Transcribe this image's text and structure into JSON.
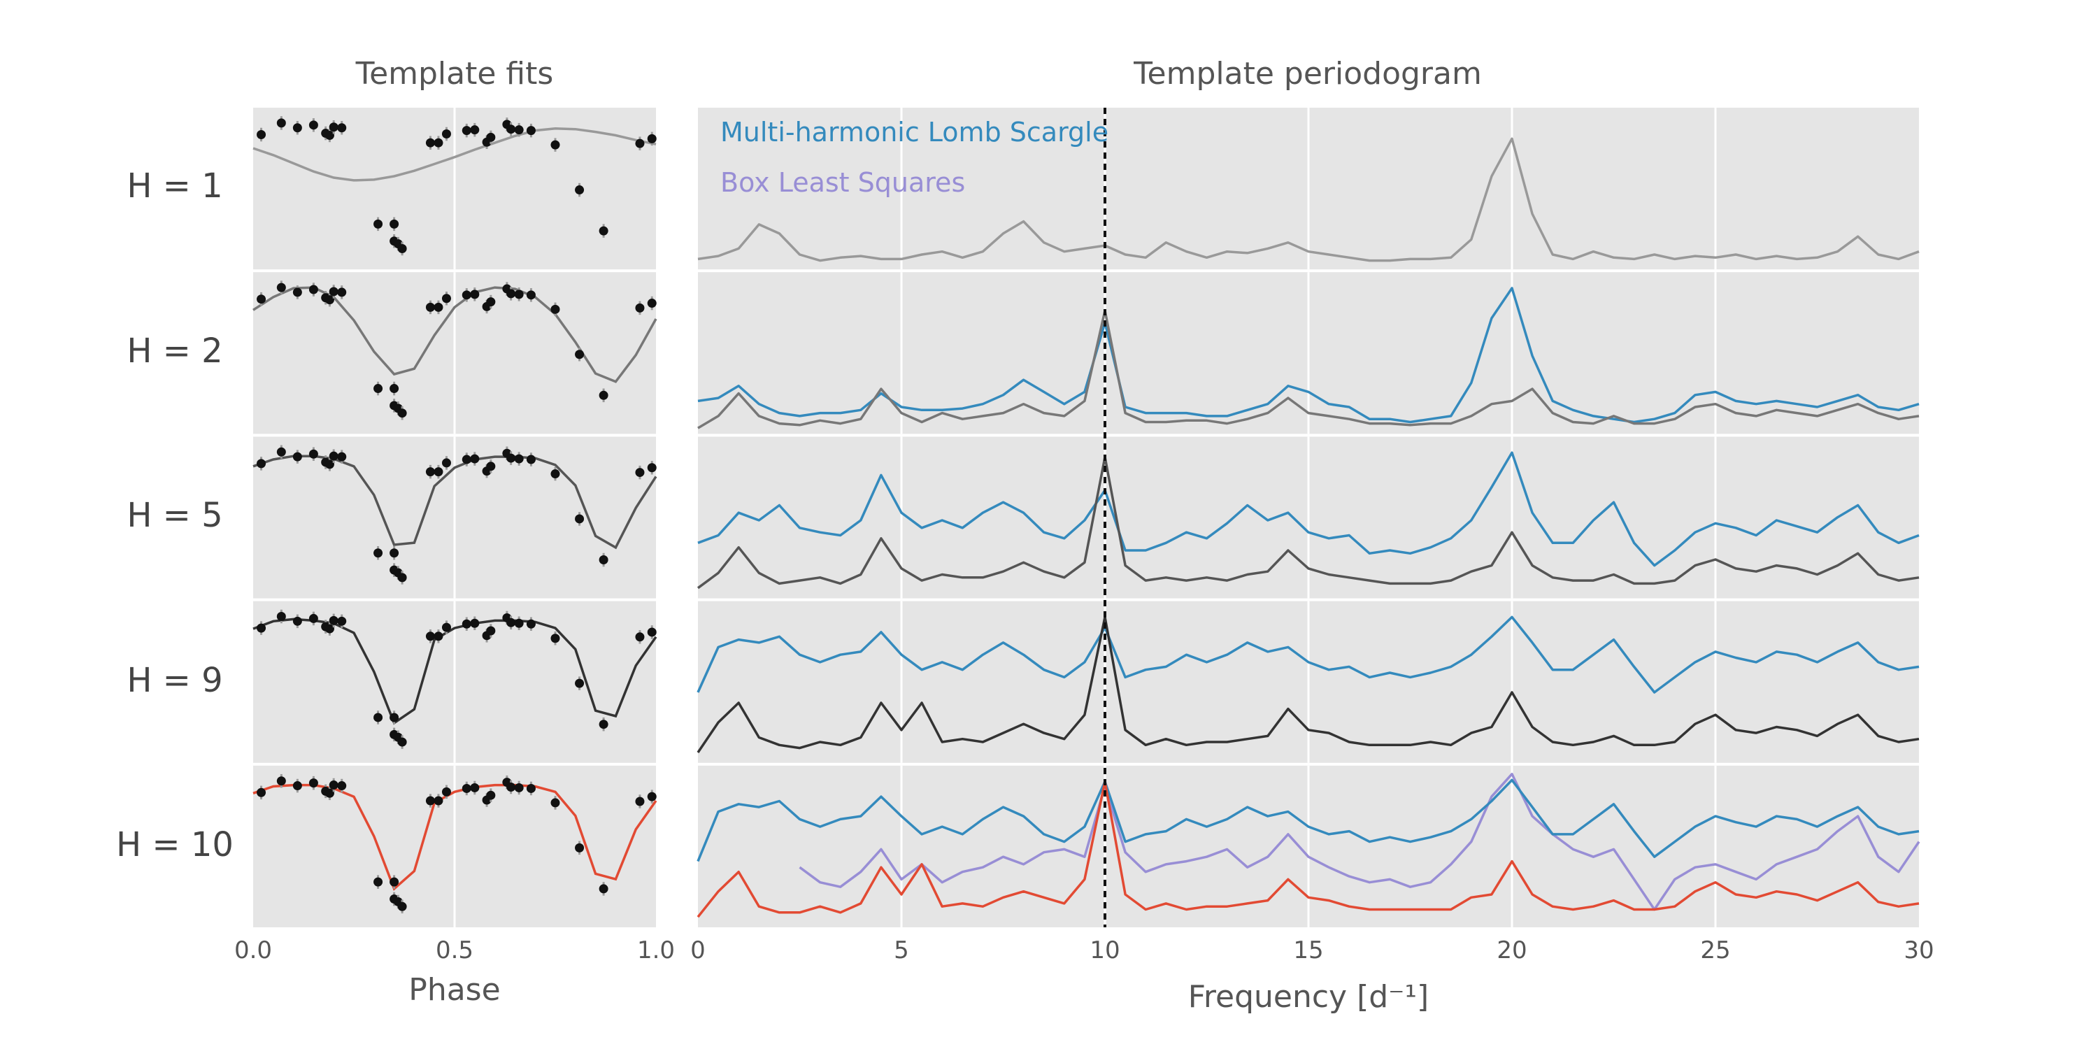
{
  "fits_panel": {
    "title": "Template fits",
    "xlabel": "Phase",
    "xlim": [
      0.0,
      1.0
    ],
    "xticks": [
      "0.0",
      "0.5",
      "1.0"
    ]
  },
  "periodogram_panel": {
    "title": "Template periodogram",
    "xlabel": "Frequency [d⁻¹]",
    "xlim": [
      0,
      30
    ],
    "xticks": [
      "0",
      "5",
      "10",
      "15",
      "20",
      "25",
      "30"
    ],
    "marker_frequency": 10,
    "legend": [
      {
        "key": "mhls",
        "label": "Multi-harmonic Lomb Scargle",
        "color": "#348abd"
      },
      {
        "key": "bls",
        "label": "Box Least Squares",
        "color": "#988ed5"
      }
    ]
  },
  "rows": [
    {
      "label": "H = 1"
    },
    {
      "label": "H = 2"
    },
    {
      "label": "H = 5"
    },
    {
      "label": "H = 9"
    },
    {
      "label": "H = 10"
    }
  ],
  "chart_data": [
    {
      "type": "scatter",
      "title": "Template fits",
      "xlabel": "Phase",
      "ylabel": "",
      "xlim": [
        0.0,
        1.0
      ],
      "observations": {
        "x": [
          0.02,
          0.07,
          0.11,
          0.15,
          0.18,
          0.19,
          0.2,
          0.22,
          0.31,
          0.35,
          0.35,
          0.36,
          0.37,
          0.44,
          0.46,
          0.48,
          0.53,
          0.55,
          0.58,
          0.59,
          0.63,
          0.64,
          0.66,
          0.69,
          0.75,
          0.81,
          0.87,
          0.96,
          0.99
        ],
        "y": [
          0.79,
          0.96,
          0.89,
          0.93,
          0.81,
          0.78,
          0.9,
          0.89,
          -0.52,
          -0.52,
          -0.77,
          -0.81,
          -0.88,
          0.67,
          0.67,
          0.8,
          0.85,
          0.86,
          0.68,
          0.75,
          0.94,
          0.87,
          0.86,
          0.85,
          0.64,
          -0.02,
          -0.62,
          0.66,
          0.73
        ],
        "error": 0.1
      },
      "series": [
        {
          "name": "H = 1",
          "color": "#999999",
          "x": [
            0.0,
            0.05,
            0.1,
            0.15,
            0.2,
            0.25,
            0.3,
            0.35,
            0.4,
            0.45,
            0.5,
            0.55,
            0.6,
            0.65,
            0.7,
            0.75,
            0.8,
            0.85,
            0.9,
            0.95,
            1.0
          ],
          "y": [
            0.59,
            0.49,
            0.37,
            0.25,
            0.16,
            0.12,
            0.13,
            0.18,
            0.26,
            0.36,
            0.46,
            0.57,
            0.67,
            0.77,
            0.85,
            0.88,
            0.87,
            0.83,
            0.78,
            0.71,
            0.65
          ]
        },
        {
          "name": "H = 2",
          "color": "#777777",
          "x": [
            0.0,
            0.05,
            0.1,
            0.15,
            0.2,
            0.25,
            0.3,
            0.35,
            0.4,
            0.45,
            0.5,
            0.55,
            0.6,
            0.65,
            0.7,
            0.75,
            0.8,
            0.85,
            0.9,
            0.95,
            1.0
          ],
          "y": [
            0.63,
            0.82,
            0.95,
            0.96,
            0.82,
            0.48,
            0.02,
            -0.31,
            -0.23,
            0.26,
            0.67,
            0.89,
            0.96,
            0.94,
            0.82,
            0.57,
            0.16,
            -0.3,
            -0.42,
            -0.03,
            0.5
          ]
        },
        {
          "name": "H = 5",
          "color": "#555555",
          "x": [
            0.0,
            0.05,
            0.1,
            0.15,
            0.2,
            0.25,
            0.3,
            0.35,
            0.4,
            0.45,
            0.5,
            0.55,
            0.6,
            0.65,
            0.7,
            0.75,
            0.8,
            0.85,
            0.9,
            0.95,
            1.0
          ],
          "y": [
            0.75,
            0.85,
            0.9,
            0.9,
            0.86,
            0.75,
            0.33,
            -0.4,
            -0.37,
            0.46,
            0.73,
            0.85,
            0.89,
            0.89,
            0.87,
            0.77,
            0.47,
            -0.27,
            -0.44,
            0.14,
            0.6
          ]
        },
        {
          "name": "H = 9",
          "color": "#333333",
          "x": [
            0.0,
            0.05,
            0.1,
            0.15,
            0.2,
            0.25,
            0.3,
            0.35,
            0.4,
            0.45,
            0.5,
            0.55,
            0.6,
            0.65,
            0.7,
            0.75,
            0.8,
            0.85,
            0.9,
            0.95,
            1.0
          ],
          "y": [
            0.78,
            0.89,
            0.92,
            0.9,
            0.86,
            0.72,
            0.15,
            -0.6,
            -0.4,
            0.62,
            0.79,
            0.86,
            0.9,
            0.9,
            0.88,
            0.79,
            0.48,
            -0.42,
            -0.5,
            0.24,
            0.66
          ]
        },
        {
          "name": "H = 10",
          "color": "#e24a33",
          "x": [
            0.0,
            0.05,
            0.1,
            0.15,
            0.2,
            0.25,
            0.3,
            0.35,
            0.4,
            0.45,
            0.5,
            0.55,
            0.6,
            0.65,
            0.7,
            0.75,
            0.8,
            0.85,
            0.9,
            0.95,
            1.0
          ],
          "y": [
            0.78,
            0.88,
            0.9,
            0.9,
            0.85,
            0.73,
            0.15,
            -0.62,
            -0.36,
            0.64,
            0.8,
            0.87,
            0.9,
            0.9,
            0.88,
            0.8,
            0.45,
            -0.4,
            -0.48,
            0.25,
            0.67
          ]
        }
      ]
    },
    {
      "type": "line",
      "title": "Template periodogram",
      "xlabel": "Frequency [d⁻¹]",
      "ylabel": "",
      "xlim": [
        0,
        30
      ],
      "x": [
        0.0,
        0.5,
        1.0,
        1.5,
        2.0,
        2.5,
        3.0,
        3.5,
        4.0,
        4.5,
        5.0,
        5.5,
        6.0,
        6.5,
        7.0,
        7.5,
        8.0,
        8.5,
        9.0,
        9.5,
        10.0,
        10.5,
        11.0,
        11.5,
        12.0,
        12.5,
        13.0,
        13.5,
        14.0,
        14.5,
        15.0,
        15.5,
        16.0,
        16.5,
        17.0,
        17.5,
        18.0,
        18.5,
        19.0,
        19.5,
        20.0,
        20.5,
        21.0,
        21.5,
        22.0,
        22.5,
        23.0,
        23.5,
        24.0,
        24.5,
        25.0,
        25.5,
        26.0,
        26.5,
        27.0,
        27.5,
        28.0,
        28.5,
        29.0,
        29.5,
        30.0
      ],
      "series": [
        {
          "name": "H = 1",
          "method": "template",
          "color": "#999999",
          "y": [
            0.05,
            0.07,
            0.12,
            0.28,
            0.22,
            0.08,
            0.04,
            0.06,
            0.07,
            0.05,
            0.05,
            0.08,
            0.1,
            0.06,
            0.1,
            0.22,
            0.3,
            0.16,
            0.1,
            0.12,
            0.14,
            0.08,
            0.06,
            0.16,
            0.1,
            0.06,
            0.1,
            0.09,
            0.12,
            0.16,
            0.1,
            0.08,
            0.06,
            0.04,
            0.04,
            0.05,
            0.05,
            0.06,
            0.18,
            0.6,
            0.85,
            0.35,
            0.08,
            0.05,
            0.1,
            0.06,
            0.05,
            0.08,
            0.05,
            0.07,
            0.06,
            0.08,
            0.05,
            0.07,
            0.05,
            0.06,
            0.1,
            0.2,
            0.08,
            0.05,
            0.1
          ]
        },
        {
          "name": "H = 2",
          "method": "template",
          "color": "#777777",
          "y": [
            0.02,
            0.1,
            0.25,
            0.1,
            0.05,
            0.04,
            0.07,
            0.05,
            0.08,
            0.28,
            0.12,
            0.06,
            0.12,
            0.08,
            0.1,
            0.12,
            0.18,
            0.12,
            0.1,
            0.2,
            0.8,
            0.12,
            0.06,
            0.06,
            0.07,
            0.07,
            0.05,
            0.08,
            0.12,
            0.22,
            0.12,
            0.1,
            0.08,
            0.05,
            0.05,
            0.04,
            0.05,
            0.05,
            0.1,
            0.18,
            0.2,
            0.28,
            0.12,
            0.06,
            0.05,
            0.1,
            0.05,
            0.05,
            0.08,
            0.16,
            0.18,
            0.12,
            0.1,
            0.14,
            0.12,
            0.1,
            0.14,
            0.18,
            0.12,
            0.08,
            0.1
          ]
        },
        {
          "name": "H = 2",
          "method": "Multi-harmonic Lomb Scargle",
          "color": "#348abd",
          "y": [
            0.2,
            0.22,
            0.3,
            0.18,
            0.12,
            0.1,
            0.12,
            0.12,
            0.14,
            0.25,
            0.16,
            0.14,
            0.14,
            0.15,
            0.18,
            0.24,
            0.34,
            0.26,
            0.18,
            0.26,
            0.72,
            0.16,
            0.12,
            0.12,
            0.12,
            0.1,
            0.1,
            0.14,
            0.18,
            0.3,
            0.26,
            0.18,
            0.16,
            0.08,
            0.08,
            0.06,
            0.08,
            0.1,
            0.32,
            0.75,
            0.95,
            0.5,
            0.2,
            0.14,
            0.1,
            0.08,
            0.06,
            0.08,
            0.12,
            0.24,
            0.26,
            0.2,
            0.18,
            0.2,
            0.18,
            0.16,
            0.2,
            0.24,
            0.16,
            0.14,
            0.18
          ]
        },
        {
          "name": "H = 5",
          "method": "template",
          "color": "#555555",
          "y": [
            0.05,
            0.15,
            0.32,
            0.15,
            0.08,
            0.1,
            0.12,
            0.08,
            0.14,
            0.38,
            0.18,
            0.1,
            0.14,
            0.12,
            0.12,
            0.16,
            0.22,
            0.16,
            0.12,
            0.22,
            0.92,
            0.2,
            0.1,
            0.12,
            0.1,
            0.12,
            0.1,
            0.14,
            0.16,
            0.3,
            0.18,
            0.14,
            0.12,
            0.1,
            0.08,
            0.08,
            0.08,
            0.1,
            0.16,
            0.2,
            0.42,
            0.2,
            0.12,
            0.1,
            0.1,
            0.14,
            0.08,
            0.08,
            0.1,
            0.2,
            0.24,
            0.18,
            0.16,
            0.2,
            0.18,
            0.14,
            0.2,
            0.28,
            0.14,
            0.1,
            0.12
          ]
        },
        {
          "name": "H = 5",
          "method": "Multi-harmonic Lomb Scargle",
          "color": "#348abd",
          "y": [
            0.35,
            0.4,
            0.55,
            0.5,
            0.6,
            0.45,
            0.42,
            0.4,
            0.5,
            0.8,
            0.55,
            0.45,
            0.5,
            0.45,
            0.55,
            0.62,
            0.55,
            0.42,
            0.38,
            0.5,
            0.7,
            0.3,
            0.3,
            0.35,
            0.42,
            0.38,
            0.48,
            0.6,
            0.5,
            0.55,
            0.42,
            0.38,
            0.4,
            0.28,
            0.3,
            0.28,
            0.32,
            0.38,
            0.5,
            0.72,
            0.95,
            0.55,
            0.35,
            0.35,
            0.5,
            0.62,
            0.35,
            0.2,
            0.3,
            0.42,
            0.48,
            0.45,
            0.4,
            0.5,
            0.46,
            0.42,
            0.52,
            0.6,
            0.42,
            0.35,
            0.4
          ]
        },
        {
          "name": "H = 9",
          "method": "template",
          "color": "#333333",
          "y": [
            0.05,
            0.25,
            0.38,
            0.15,
            0.1,
            0.08,
            0.12,
            0.1,
            0.15,
            0.38,
            0.2,
            0.38,
            0.12,
            0.14,
            0.12,
            0.18,
            0.24,
            0.18,
            0.14,
            0.3,
            0.95,
            0.2,
            0.1,
            0.14,
            0.1,
            0.12,
            0.12,
            0.14,
            0.16,
            0.34,
            0.2,
            0.18,
            0.12,
            0.1,
            0.1,
            0.1,
            0.12,
            0.1,
            0.18,
            0.22,
            0.45,
            0.22,
            0.12,
            0.1,
            0.12,
            0.16,
            0.1,
            0.1,
            0.12,
            0.24,
            0.3,
            0.2,
            0.18,
            0.22,
            0.2,
            0.16,
            0.24,
            0.3,
            0.16,
            0.12,
            0.14
          ]
        },
        {
          "name": "H = 9",
          "method": "Multi-harmonic Lomb Scargle",
          "color": "#348abd",
          "y": [
            0.45,
            0.75,
            0.8,
            0.78,
            0.82,
            0.7,
            0.65,
            0.7,
            0.72,
            0.85,
            0.7,
            0.6,
            0.65,
            0.6,
            0.7,
            0.78,
            0.7,
            0.6,
            0.55,
            0.65,
            0.88,
            0.55,
            0.6,
            0.62,
            0.7,
            0.65,
            0.7,
            0.78,
            0.72,
            0.75,
            0.65,
            0.6,
            0.62,
            0.55,
            0.58,
            0.55,
            0.58,
            0.62,
            0.7,
            0.82,
            0.95,
            0.78,
            0.6,
            0.6,
            0.7,
            0.8,
            0.62,
            0.45,
            0.55,
            0.65,
            0.72,
            0.68,
            0.65,
            0.72,
            0.7,
            0.65,
            0.72,
            0.78,
            0.65,
            0.6,
            0.62
          ]
        },
        {
          "name": "H = 10",
          "method": "template",
          "color": "#e24a33",
          "y": [
            0.05,
            0.22,
            0.35,
            0.12,
            0.08,
            0.08,
            0.12,
            0.08,
            0.14,
            0.38,
            0.2,
            0.4,
            0.12,
            0.14,
            0.12,
            0.18,
            0.22,
            0.18,
            0.14,
            0.3,
            0.95,
            0.2,
            0.1,
            0.14,
            0.1,
            0.12,
            0.12,
            0.14,
            0.16,
            0.3,
            0.18,
            0.16,
            0.12,
            0.1,
            0.1,
            0.1,
            0.1,
            0.1,
            0.18,
            0.2,
            0.42,
            0.2,
            0.12,
            0.1,
            0.12,
            0.16,
            0.1,
            0.1,
            0.12,
            0.22,
            0.28,
            0.2,
            0.18,
            0.22,
            0.2,
            0.16,
            0.22,
            0.28,
            0.15,
            0.12,
            0.14
          ]
        },
        {
          "name": "H = 10",
          "method": "Multi-harmonic Lomb Scargle",
          "color": "#348abd",
          "y": [
            0.42,
            0.75,
            0.8,
            0.78,
            0.82,
            0.7,
            0.65,
            0.7,
            0.72,
            0.85,
            0.72,
            0.6,
            0.65,
            0.6,
            0.7,
            0.78,
            0.72,
            0.6,
            0.55,
            0.65,
            0.95,
            0.55,
            0.6,
            0.62,
            0.7,
            0.65,
            0.7,
            0.78,
            0.72,
            0.75,
            0.65,
            0.6,
            0.62,
            0.55,
            0.58,
            0.55,
            0.58,
            0.62,
            0.7,
            0.82,
            0.96,
            0.78,
            0.6,
            0.6,
            0.7,
            0.8,
            0.62,
            0.45,
            0.55,
            0.65,
            0.72,
            0.68,
            0.65,
            0.72,
            0.7,
            0.65,
            0.72,
            0.78,
            0.65,
            0.6,
            0.62
          ]
        },
        {
          "name": "H = 10",
          "method": "Box Least Squares",
          "color": "#988ed5",
          "y": [
            null,
            null,
            null,
            null,
            null,
            0.38,
            0.28,
            0.25,
            0.35,
            0.5,
            0.3,
            0.4,
            0.28,
            0.35,
            0.38,
            0.45,
            0.4,
            0.48,
            0.5,
            0.45,
            0.92,
            0.48,
            0.35,
            0.4,
            0.42,
            0.45,
            0.5,
            0.38,
            0.45,
            0.6,
            0.45,
            0.38,
            0.32,
            0.28,
            0.3,
            0.25,
            0.28,
            0.4,
            0.55,
            0.85,
            1.0,
            0.72,
            0.6,
            0.5,
            0.45,
            0.5,
            0.3,
            0.1,
            0.3,
            0.38,
            0.4,
            0.35,
            0.3,
            0.4,
            0.45,
            0.5,
            0.62,
            0.72,
            0.45,
            0.35,
            0.55
          ]
        }
      ]
    }
  ]
}
